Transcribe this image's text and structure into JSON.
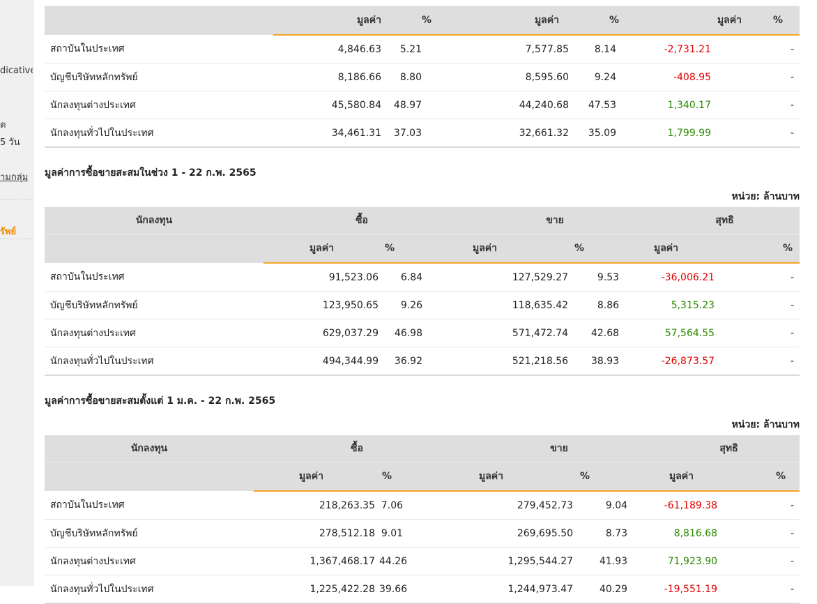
{
  "sidebar": {
    "fragment_indicative": "dicative",
    "fragment_date": "ัต",
    "fragment_days": "5 วัน",
    "link_group": "ามกลุ่ม",
    "active_item": "รัพย์"
  },
  "labels": {
    "value": "มูลค่า",
    "percent": "%",
    "investor": "นักลงทุน",
    "buy": "ซื้อ",
    "sell": "ขาย",
    "net": "สุทธิ",
    "unit": "หน่วย: ล้านบาท"
  },
  "table1": {
    "rows": [
      {
        "name": "สถาบันในประเทศ",
        "buy_value": "4,846.63",
        "buy_pct": "5.21",
        "sell_value": "7,577.85",
        "sell_pct": "8.14",
        "net_value": "-2,731.21",
        "net_pct": "-"
      },
      {
        "name": "บัญชีบริษัทหลักทรัพย์",
        "buy_value": "8,186.66",
        "buy_pct": "8.80",
        "sell_value": "8,595.60",
        "sell_pct": "9.24",
        "net_value": "-408.95",
        "net_pct": "-"
      },
      {
        "name": "นักลงทุนต่างประเทศ",
        "buy_value": "45,580.84",
        "buy_pct": "48.97",
        "sell_value": "44,240.68",
        "sell_pct": "47.53",
        "net_value": "1,340.17",
        "net_pct": "-"
      },
      {
        "name": "นักลงทุนทั่วไปในประเทศ",
        "buy_value": "34,461.31",
        "buy_pct": "37.03",
        "sell_value": "32,661.32",
        "sell_pct": "35.09",
        "net_value": "1,799.99",
        "net_pct": "-"
      }
    ]
  },
  "table2": {
    "title": "มูลค่าการซื้อขายสะสมในช่วง 1 - 22 ก.พ. 2565",
    "rows": [
      {
        "name": "สถาบันในประเทศ",
        "buy_value": "91,523.06",
        "buy_pct": "6.84",
        "sell_value": "127,529.27",
        "sell_pct": "9.53",
        "net_value": "-36,006.21",
        "net_pct": "-"
      },
      {
        "name": "บัญชีบริษัทหลักทรัพย์",
        "buy_value": "123,950.65",
        "buy_pct": "9.26",
        "sell_value": "118,635.42",
        "sell_pct": "8.86",
        "net_value": "5,315.23",
        "net_pct": "-"
      },
      {
        "name": "นักลงทุนต่างประเทศ",
        "buy_value": "629,037.29",
        "buy_pct": "46.98",
        "sell_value": "571,472.74",
        "sell_pct": "42.68",
        "net_value": "57,564.55",
        "net_pct": "-"
      },
      {
        "name": "นักลงทุนทั่วไปในประเทศ",
        "buy_value": "494,344.99",
        "buy_pct": "36.92",
        "sell_value": "521,218.56",
        "sell_pct": "38.93",
        "net_value": "-26,873.57",
        "net_pct": "-"
      }
    ]
  },
  "table3": {
    "title": "มูลค่าการซื้อขายสะสมตั้งแต่ 1 ม.ค. - 22 ก.พ. 2565",
    "rows": [
      {
        "name": "สถาบันในประเทศ",
        "buy_value": "218,263.35",
        "buy_pct": "7.06",
        "sell_value": "279,452.73",
        "sell_pct": "9.04",
        "net_value": "-61,189.38",
        "net_pct": "-"
      },
      {
        "name": "บัญชีบริษัทหลักทรัพย์",
        "buy_value": "278,512.18",
        "buy_pct": "9.01",
        "sell_value": "269,695.50",
        "sell_pct": "8.73",
        "net_value": "8,816.68",
        "net_pct": "-"
      },
      {
        "name": "นักลงทุนต่างประเทศ",
        "buy_value": "1,367,468.17",
        "buy_pct": "44.26",
        "sell_value": "1,295,544.27",
        "sell_pct": "41.93",
        "net_value": "71,923.90",
        "net_pct": "-"
      },
      {
        "name": "นักลงทุนทั่วไปในประเทศ",
        "buy_value": "1,225,422.28",
        "buy_pct": "39.66",
        "sell_value": "1,244,973.47",
        "sell_pct": "40.29",
        "net_value": "-19,551.19",
        "net_pct": "-"
      }
    ]
  },
  "colors": {
    "negative": "#e00000",
    "positive": "#2a8a00",
    "accent": "#f5a623",
    "header_bg": "#dedede"
  }
}
